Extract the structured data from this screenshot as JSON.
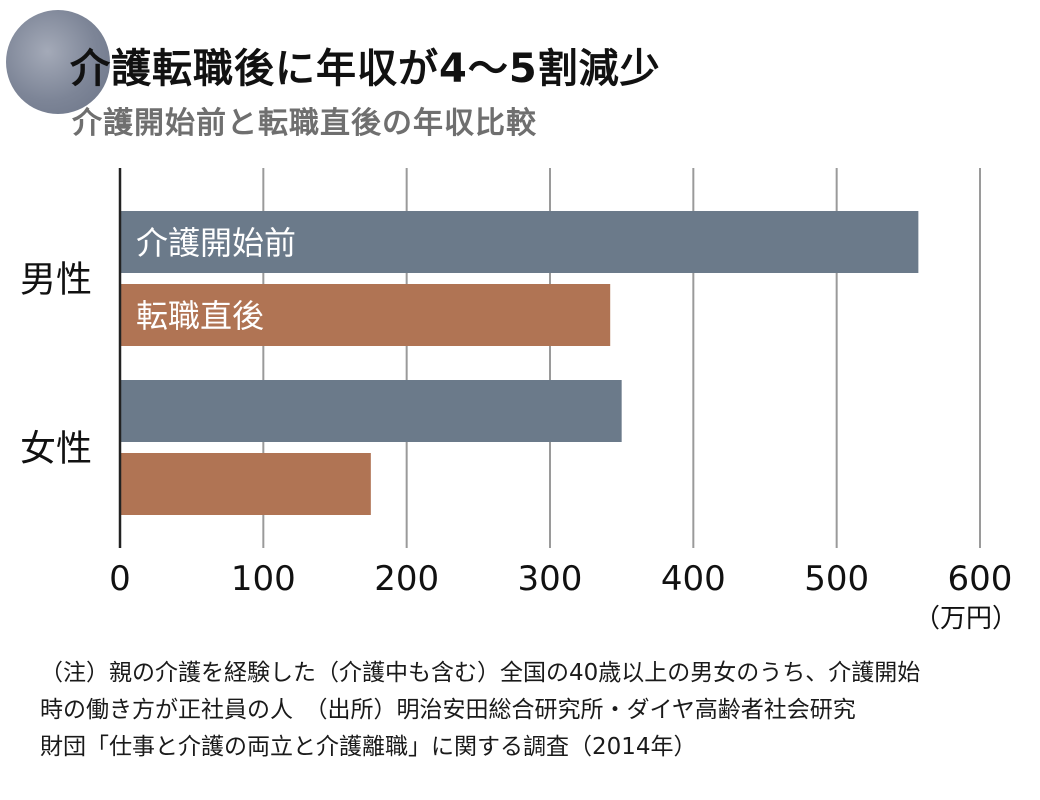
{
  "header": {
    "title": "介護転職後に年収が4～5割減少",
    "subtitle": "介護開始前と転職直後の年収比較"
  },
  "colors": {
    "before": "#6b7a8a",
    "after": "#b07454",
    "grid": "#9a9a9a",
    "axis": "#222222"
  },
  "chart_data": {
    "type": "bar",
    "orientation": "horizontal",
    "categories": [
      "男性",
      "女性"
    ],
    "series": [
      {
        "name": "介護開始前",
        "values": [
          557,
          350
        ]
      },
      {
        "name": "転職直後",
        "values": [
          342,
          175
        ]
      }
    ],
    "xlim": [
      0,
      600
    ],
    "xticks": [
      "0",
      "100",
      "200",
      "300",
      "400",
      "500",
      "600"
    ],
    "unit_label": "（万円）",
    "grid": true,
    "legend": "inside bars"
  },
  "note": {
    "lines": [
      "（注）親の介護を経験した（介護中も含む）全国の40歳以上の男女のうち、介護開始",
      "時の働き方が正社員の人　（出所）明治安田総合研究所・ダイヤ高齢者社会研究",
      "財団「仕事と介護の両立と介護離職」に関する調査（2014年）"
    ]
  }
}
